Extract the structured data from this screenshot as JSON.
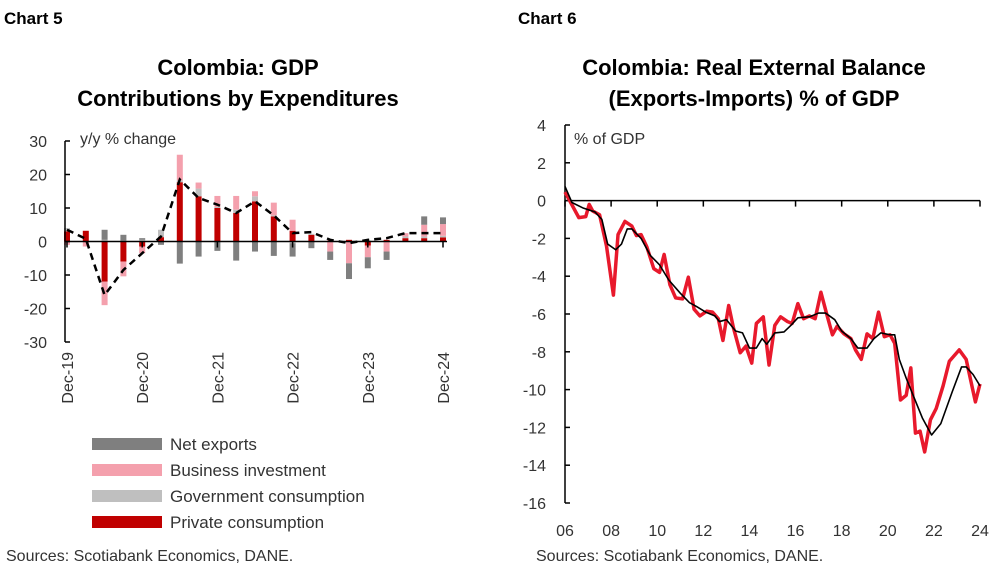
{
  "chart_data": [
    {
      "header": "Chart 5",
      "type": "bar",
      "stacked": true,
      "title_lines": [
        "Colombia: GDP",
        "Contributions by Expenditures"
      ],
      "unit_label": "y/y % change",
      "ylim": [
        -30,
        30
      ],
      "yticks": [
        "30",
        "20",
        "10",
        "0",
        "-10",
        "-20",
        "-30"
      ],
      "ytick_values": [
        30,
        20,
        10,
        0,
        -10,
        -20,
        -30
      ],
      "xtick_labels": [
        "Dec-19",
        "Dec-20",
        "Dec-21",
        "Dec-22",
        "Dec-23",
        "Dec-24"
      ],
      "xtick_index": [
        0,
        4,
        8,
        12,
        16,
        20
      ],
      "categories": [
        "Dec-19",
        "Mar-20",
        "Jun-20",
        "Sep-20",
        "Dec-20",
        "Mar-21",
        "Jun-21",
        "Sep-21",
        "Dec-21",
        "Mar-22",
        "Jun-22",
        "Sep-22",
        "Dec-22",
        "Mar-23",
        "Jun-23",
        "Sep-23",
        "Dec-23",
        "Mar-24",
        "Jun-24",
        "Sep-24",
        "Dec-24"
      ],
      "series": [
        {
          "name": "Private consumption",
          "color": "#c00000",
          "values": [
            3.0,
            3.2,
            -12,
            -6,
            -1.5,
            1.3,
            17.7,
            13.5,
            10,
            8.5,
            12,
            7.5,
            3.2,
            2,
            0.3,
            0.5,
            -1.2,
            0.5,
            1,
            1,
            1.2
          ]
        },
        {
          "name": "Government consumption",
          "color": "#bfbfbf",
          "values": [
            1.0,
            0,
            0.5,
            0.3,
            0.5,
            2.2,
            0.5,
            2.3,
            0.3,
            1.0,
            1.5,
            0.3,
            -0.5,
            0.3,
            0,
            0,
            0.3,
            0,
            0.5,
            0.5,
            0.5
          ]
        },
        {
          "name": "Business investment",
          "color": "#f4a0ad",
          "values": [
            -1.0,
            -1.5,
            -7,
            -4.4,
            -2,
            0,
            7.7,
            1.8,
            3.3,
            4.1,
            1.5,
            3.8,
            3.3,
            0,
            -3,
            -6.5,
            -3.5,
            -3,
            1,
            3.5,
            3.5
          ]
        },
        {
          "name": "Net exports",
          "color": "#7f7f7f",
          "values": [
            0,
            0,
            3,
            1.7,
            0.5,
            -1,
            -6.6,
            -4.5,
            -2.8,
            -5.7,
            -3,
            -4.3,
            -4,
            -2,
            -2.5,
            -4.7,
            -3.3,
            -2.5,
            0,
            2.5,
            2
          ]
        }
      ],
      "total": {
        "style": "dashed",
        "color": "#000000",
        "values": [
          3.5,
          0.8,
          -16,
          -8.5,
          -3.5,
          1.5,
          18.5,
          13,
          11,
          8.5,
          12,
          7.8,
          2.5,
          2.8,
          0.5,
          -0.5,
          0.5,
          1,
          2.5,
          2.5,
          2.5
        ]
      },
      "legend_order": [
        "Net exports",
        "Business investment",
        "Government consumption",
        "Private consumption"
      ],
      "legend_position": "bottom",
      "source": "Sources: Scotiabank Economics, DANE."
    },
    {
      "header": "Chart 6",
      "type": "line",
      "title_lines": [
        "Colombia: Real External Balance",
        "(Exports-Imports) % of GDP"
      ],
      "unit_label": "% of GDP",
      "ylim": [
        -16,
        4
      ],
      "xlim": [
        2006,
        2024
      ],
      "yticks": [
        "4",
        "2",
        "0",
        "-2",
        "-4",
        "-6",
        "-8",
        "-10",
        "-12",
        "-14",
        "-16"
      ],
      "ytick_values": [
        4,
        2,
        0,
        -2,
        -4,
        -6,
        -8,
        -10,
        -12,
        -14,
        -16
      ],
      "xticks": [
        "06",
        "08",
        "10",
        "12",
        "14",
        "16",
        "18",
        "20",
        "22",
        "24"
      ],
      "xtick_values": [
        2006,
        2008,
        2010,
        2012,
        2014,
        2016,
        2018,
        2020,
        2022,
        2024
      ],
      "series": [
        {
          "color": "#e8192c",
          "points": [
            [
              2006.0,
              0.45
            ],
            [
              2006.2,
              0
            ],
            [
              2006.6,
              -0.9
            ],
            [
              2006.9,
              -0.85
            ],
            [
              2007.05,
              -0.2
            ],
            [
              2007.2,
              -0.55
            ],
            [
              2007.5,
              -0.75
            ],
            [
              2007.8,
              -2.4
            ],
            [
              2008.1,
              -5.0
            ],
            [
              2008.3,
              -1.8
            ],
            [
              2008.6,
              -1.1
            ],
            [
              2008.9,
              -1.35
            ],
            [
              2009.1,
              -1.85
            ],
            [
              2009.3,
              -1.8
            ],
            [
              2009.55,
              -2.45
            ],
            [
              2009.85,
              -3.6
            ],
            [
              2010.1,
              -3.8
            ],
            [
              2010.3,
              -2.85
            ],
            [
              2010.55,
              -4.45
            ],
            [
              2010.8,
              -5.15
            ],
            [
              2011.1,
              -5.2
            ],
            [
              2011.35,
              -4.05
            ],
            [
              2011.6,
              -5.75
            ],
            [
              2011.85,
              -6.1
            ],
            [
              2012.15,
              -5.85
            ],
            [
              2012.4,
              -5.9
            ],
            [
              2012.65,
              -6.25
            ],
            [
              2012.85,
              -7.4
            ],
            [
              2013.1,
              -5.55
            ],
            [
              2013.3,
              -6.7
            ],
            [
              2013.6,
              -8.05
            ],
            [
              2013.85,
              -7.7
            ],
            [
              2014.1,
              -8.6
            ],
            [
              2014.3,
              -6.5
            ],
            [
              2014.6,
              -6.15
            ],
            [
              2014.85,
              -8.7
            ],
            [
              2015.1,
              -6.6
            ],
            [
              2015.35,
              -6.15
            ],
            [
              2015.65,
              -6.4
            ],
            [
              2015.85,
              -6.5
            ],
            [
              2016.1,
              -5.45
            ],
            [
              2016.35,
              -6.25
            ],
            [
              2016.6,
              -6.1
            ],
            [
              2016.85,
              -6.25
            ],
            [
              2017.1,
              -4.85
            ],
            [
              2017.35,
              -6.0
            ],
            [
              2017.6,
              -7.1
            ],
            [
              2017.8,
              -6.65
            ],
            [
              2018.1,
              -7.05
            ],
            [
              2018.4,
              -7.3
            ],
            [
              2018.6,
              -7.9
            ],
            [
              2018.85,
              -8.4
            ],
            [
              2019.1,
              -7.05
            ],
            [
              2019.35,
              -7.3
            ],
            [
              2019.6,
              -5.9
            ],
            [
              2019.85,
              -7.2
            ],
            [
              2020.1,
              -7.1
            ],
            [
              2020.3,
              -7.55
            ],
            [
              2020.55,
              -10.55
            ],
            [
              2020.8,
              -10.3
            ],
            [
              2021.0,
              -8.85
            ],
            [
              2021.2,
              -12.3
            ],
            [
              2021.4,
              -12.2
            ],
            [
              2021.6,
              -13.3
            ],
            [
              2021.85,
              -11.6
            ],
            [
              2022.1,
              -11.0
            ],
            [
              2022.4,
              -9.8
            ],
            [
              2022.67,
              -8.5
            ],
            [
              2023.1,
              -7.9
            ],
            [
              2023.4,
              -8.4
            ],
            [
              2023.8,
              -10.65
            ],
            [
              2024.0,
              -9.7
            ]
          ]
        },
        {
          "color": "#000000",
          "points": [
            [
              2006.0,
              0.75
            ],
            [
              2006.3,
              -0.1
            ],
            [
              2006.8,
              -0.4
            ],
            [
              2007.3,
              -0.6
            ],
            [
              2007.6,
              -1.0
            ],
            [
              2007.85,
              -2.3
            ],
            [
              2008.2,
              -2.6
            ],
            [
              2008.45,
              -2.3
            ],
            [
              2008.7,
              -1.5
            ],
            [
              2008.9,
              -1.5
            ],
            [
              2009.3,
              -2.0
            ],
            [
              2009.7,
              -2.9
            ],
            [
              2010.1,
              -3.4
            ],
            [
              2010.5,
              -4.2
            ],
            [
              2011.0,
              -4.9
            ],
            [
              2011.4,
              -5.4
            ],
            [
              2011.7,
              -5.6
            ],
            [
              2012.1,
              -5.9
            ],
            [
              2012.5,
              -6.1
            ],
            [
              2012.7,
              -6.4
            ],
            [
              2013.0,
              -6.3
            ],
            [
              2013.4,
              -6.9
            ],
            [
              2013.7,
              -7.0
            ],
            [
              2014.0,
              -7.8
            ],
            [
              2014.3,
              -7.8
            ],
            [
              2014.55,
              -7.3
            ],
            [
              2014.75,
              -7.6
            ],
            [
              2015.1,
              -7.0
            ],
            [
              2015.5,
              -6.95
            ],
            [
              2015.8,
              -6.6
            ],
            [
              2016.1,
              -6.2
            ],
            [
              2016.6,
              -6.15
            ],
            [
              2017.0,
              -5.95
            ],
            [
              2017.3,
              -5.95
            ],
            [
              2017.7,
              -6.3
            ],
            [
              2018.0,
              -6.9
            ],
            [
              2018.4,
              -7.3
            ],
            [
              2018.7,
              -7.8
            ],
            [
              2019.1,
              -7.8
            ],
            [
              2019.4,
              -7.3
            ],
            [
              2019.7,
              -7.0
            ],
            [
              2020.1,
              -7.1
            ],
            [
              2020.3,
              -7.1
            ],
            [
              2020.5,
              -8.4
            ],
            [
              2020.8,
              -9.4
            ],
            [
              2021.1,
              -10.3
            ],
            [
              2021.5,
              -11.5
            ],
            [
              2021.9,
              -12.4
            ],
            [
              2022.3,
              -11.8
            ],
            [
              2022.8,
              -10.1
            ],
            [
              2023.2,
              -8.8
            ],
            [
              2023.4,
              -8.8
            ],
            [
              2023.7,
              -9.2
            ],
            [
              2024.0,
              -9.8
            ]
          ]
        }
      ],
      "grid": false,
      "source": "Sources: Scotiabank Economics, DANE."
    }
  ]
}
